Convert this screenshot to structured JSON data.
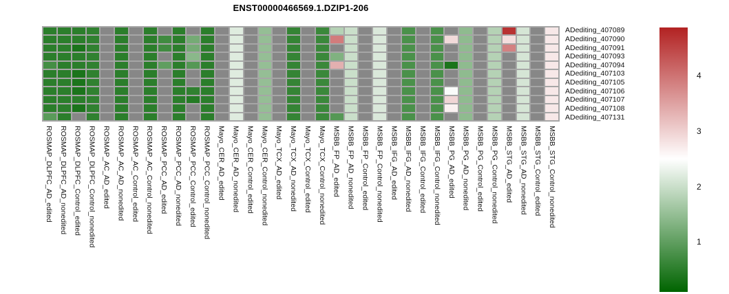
{
  "title": "ENST00000466569.1.DZIP1-206",
  "chart_data": {
    "type": "heatmap",
    "title": "ENST00000466569.1.DZIP1-206",
    "legend_position": "right",
    "rows": [
      "ADediting_407089",
      "ADediting_407090",
      "ADediting_407091",
      "ADediting_407093",
      "ADediting_407094",
      "ADediting_407103",
      "ADediting_407105",
      "ADediting_407106",
      "ADediting_407107",
      "ADediting_407108",
      "ADediting_407131"
    ],
    "columns": [
      "ROSMAP_DLPFC_AD_edited",
      "ROSMAP_DLPFC_AD_nonedited",
      "ROSMAP_DLPFC_Control_edited",
      "ROSMAP_DLPFC_Control_nonedited",
      "ROSMAP_AC_AD_edited",
      "ROSMAP_AC_AD_nonedited",
      "ROSMAP_AC_Control_edited",
      "ROSMAP_AC_Control_nonedited",
      "ROSMAP_PCC_AD_edited",
      "ROSMAP_PCC_AD_nonedited",
      "ROSMAP_PCC_Control_edited",
      "ROSMAP_PCC_Control_nonedited",
      "Mayo_CER_AD_edited",
      "Mayo_CER_AD_nonedited",
      "Mayo_CER_Control_edited",
      "Mayo_CER_Control_nonedited",
      "Mayo_TCX_AD_edited",
      "Mayo_TCX_AD_nonedited",
      "Mayo_TCX_Control_edited",
      "Mayo_TCX_Control_nonedited",
      "MSBB_FP_AD_edited",
      "MSBB_FP_AD_nonedited",
      "MSBB_FP_Control_edited",
      "MSBB_FP_Control_nonedited",
      "MSBB_IFG_AD_edited",
      "MSBB_IFG_AD_nonedited",
      "MSBB_IFG_Control_edited",
      "MSBB_IFG_Control_nonedited",
      "MSBB_PG_AD_edited",
      "MSBB_PG_AD_nonedited",
      "MSBB_PG_Control_edited",
      "MSBB_PG_Control_nonedited",
      "MSBB_STG_AD_edited",
      "MSBB_STG_AD_nonedited",
      "MSBB_STG_Control_edited",
      "MSBB_STG_Control_nonedited"
    ],
    "values": [
      [
        0.5,
        0.5,
        0.5,
        0.55,
        null,
        0.5,
        null,
        0.5,
        null,
        0.5,
        null,
        0.5,
        null,
        2.2,
        null,
        1.5,
        null,
        0.6,
        null,
        0.65,
        1.8,
        2.0,
        null,
        2.15,
        null,
        0.8,
        null,
        0.8,
        null,
        1.45,
        null,
        1.8,
        4.7,
        2.1,
        null,
        2.75
      ],
      [
        0.5,
        0.5,
        0.5,
        0.55,
        null,
        0.5,
        null,
        0.5,
        0.7,
        0.5,
        1.2,
        0.5,
        null,
        2.2,
        null,
        1.5,
        null,
        0.6,
        null,
        0.65,
        3.9,
        2.0,
        null,
        2.15,
        null,
        0.8,
        null,
        0.8,
        2.9,
        1.45,
        null,
        1.8,
        2.85,
        2.1,
        null,
        2.75
      ],
      [
        0.5,
        0.5,
        0.35,
        0.55,
        null,
        0.5,
        null,
        0.5,
        0.7,
        0.5,
        1.2,
        0.5,
        null,
        2.2,
        null,
        1.5,
        null,
        0.6,
        null,
        0.65,
        null,
        2.0,
        null,
        2.15,
        null,
        0.8,
        null,
        0.8,
        null,
        1.45,
        null,
        1.8,
        3.85,
        2.1,
        null,
        2.75
      ],
      [
        0.5,
        0.5,
        0.5,
        0.55,
        null,
        0.5,
        null,
        0.5,
        null,
        0.5,
        1.4,
        0.5,
        null,
        2.2,
        null,
        1.5,
        null,
        0.6,
        null,
        0.65,
        1.3,
        2.0,
        null,
        2.15,
        null,
        0.8,
        null,
        0.8,
        null,
        1.45,
        null,
        1.8,
        null,
        2.1,
        null,
        2.75
      ],
      [
        0.75,
        0.5,
        0.5,
        0.55,
        null,
        0.5,
        null,
        0.5,
        1.0,
        0.5,
        0.9,
        0.5,
        null,
        2.2,
        null,
        1.5,
        null,
        0.6,
        null,
        0.65,
        3.35,
        2.0,
        null,
        2.15,
        null,
        0.8,
        null,
        0.8,
        0.35,
        1.45,
        null,
        1.8,
        null,
        2.1,
        null,
        2.75
      ],
      [
        0.5,
        0.5,
        0.35,
        0.55,
        null,
        0.5,
        null,
        0.5,
        null,
        0.5,
        null,
        0.5,
        null,
        2.2,
        null,
        1.5,
        null,
        0.6,
        null,
        0.65,
        null,
        2.0,
        null,
        2.15,
        null,
        0.8,
        null,
        0.8,
        null,
        1.45,
        null,
        1.8,
        null,
        2.1,
        null,
        2.75
      ],
      [
        0.5,
        0.5,
        0.35,
        0.55,
        null,
        0.5,
        null,
        0.5,
        null,
        0.5,
        null,
        0.5,
        null,
        2.2,
        null,
        1.5,
        null,
        0.6,
        null,
        0.65,
        null,
        2.0,
        null,
        2.15,
        null,
        0.8,
        null,
        0.8,
        null,
        1.45,
        null,
        1.8,
        null,
        2.1,
        null,
        2.75
      ],
      [
        0.5,
        0.5,
        0.35,
        0.55,
        null,
        0.5,
        null,
        0.5,
        null,
        0.5,
        0.55,
        0.5,
        null,
        2.2,
        null,
        1.5,
        null,
        0.6,
        null,
        0.65,
        null,
        2.0,
        null,
        2.15,
        null,
        0.8,
        null,
        0.8,
        2.45,
        1.45,
        null,
        1.8,
        null,
        2.1,
        null,
        2.75
      ],
      [
        0.5,
        0.5,
        0.5,
        0.55,
        null,
        0.5,
        null,
        0.5,
        null,
        0.5,
        0.45,
        0.5,
        null,
        2.2,
        null,
        1.5,
        null,
        0.6,
        null,
        0.65,
        null,
        2.0,
        null,
        2.15,
        null,
        0.8,
        null,
        0.8,
        2.95,
        1.45,
        null,
        1.8,
        null,
        2.1,
        null,
        2.75
      ],
      [
        0.5,
        0.5,
        0.35,
        0.55,
        null,
        0.5,
        null,
        0.5,
        null,
        0.5,
        null,
        0.5,
        null,
        2.2,
        null,
        1.5,
        null,
        0.6,
        null,
        0.65,
        null,
        2.0,
        null,
        2.15,
        null,
        0.8,
        null,
        0.8,
        2.65,
        1.45,
        null,
        1.8,
        null,
        2.1,
        null,
        2.75
      ],
      [
        0.95,
        0.5,
        null,
        0.55,
        null,
        0.5,
        null,
        0.5,
        null,
        0.5,
        null,
        0.5,
        null,
        2.2,
        null,
        1.5,
        null,
        0.6,
        null,
        0.65,
        0.9,
        2.0,
        null,
        2.15,
        null,
        0.8,
        null,
        0.8,
        null,
        1.45,
        null,
        1.8,
        null,
        2.1,
        null,
        2.75
      ]
    ],
    "na_color": "#878787",
    "gap_color": "#a6a6a6",
    "colormap": {
      "low_color": "#006400",
      "mid_color": "#ffffff",
      "high_color": "#b22222",
      "min": 0.1,
      "mid": 2.5,
      "max": 4.87
    },
    "colorbar": {
      "ticks": [
        4,
        3,
        2,
        1
      ]
    }
  }
}
